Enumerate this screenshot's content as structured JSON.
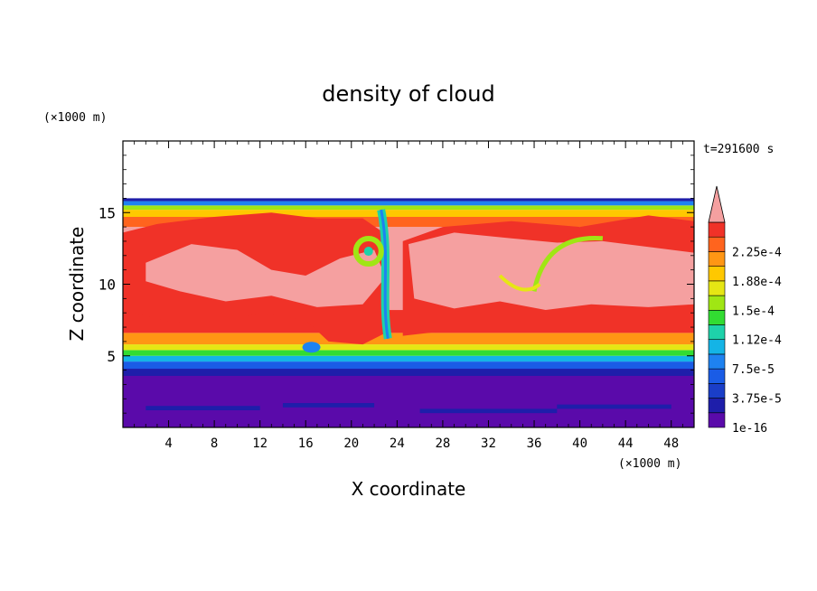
{
  "chart_data": {
    "type": "heatmap",
    "title": "density of cloud",
    "time_label": "t=291600 s",
    "xlabel": "X coordinate",
    "ylabel": "Z coordinate",
    "x_unit": "(×1000 m)",
    "y_unit": "(×1000 m)",
    "xlim": [
      0,
      50
    ],
    "ylim": [
      0,
      20
    ],
    "x_ticks": [
      4,
      8,
      12,
      16,
      20,
      24,
      28,
      32,
      36,
      40,
      44,
      48
    ],
    "y_ticks": [
      5,
      10,
      15
    ],
    "colorbar": {
      "labels": [
        "2.25e-4",
        "1.88e-4",
        "1.5e-4",
        "1.12e-4",
        "7.5e-5",
        "3.75e-5",
        "1e-16"
      ],
      "levels": [
        "1e-16",
        "1.875e-5",
        "3.75e-5",
        "5.625e-5",
        "7.5e-5",
        "9.375e-5",
        "1.12e-4",
        "1.3e-4",
        "1.5e-4",
        "1.69e-4",
        "1.88e-4",
        "2.06e-4",
        "2.25e-4",
        "2.44e-4"
      ],
      "colors": [
        "#5a0aaa",
        "#1e1eaa",
        "#1a3ec8",
        "#1a5ce6",
        "#1e82f0",
        "#14b4e6",
        "#1ed2aa",
        "#32dc32",
        "#a0e614",
        "#e6e614",
        "#ffc800",
        "#ff9614",
        "#ff641e",
        "#f03228"
      ],
      "extend_color": "#f5a0a0"
    },
    "field": {
      "layers_by_z": [
        {
          "z_range": [
            0,
            4
          ],
          "level": "1e-16"
        },
        {
          "z_range": [
            4,
            5
          ],
          "level": "7.5e-5"
        },
        {
          "z_range": [
            5,
            6.5
          ],
          "level": "1.69e-4"
        },
        {
          "z_range": [
            6.5,
            8
          ],
          "level": "2.25e-4"
        },
        {
          "z_range": [
            8,
            14
          ],
          "level": ">2.44e-4"
        },
        {
          "z_range": [
            14,
            15
          ],
          "level": "2.06e-4"
        },
        {
          "z_range": [
            15,
            16
          ],
          "level": "7.5e-5"
        },
        {
          "z_range": [
            16,
            20
          ],
          "level": "none"
        }
      ]
    }
  }
}
